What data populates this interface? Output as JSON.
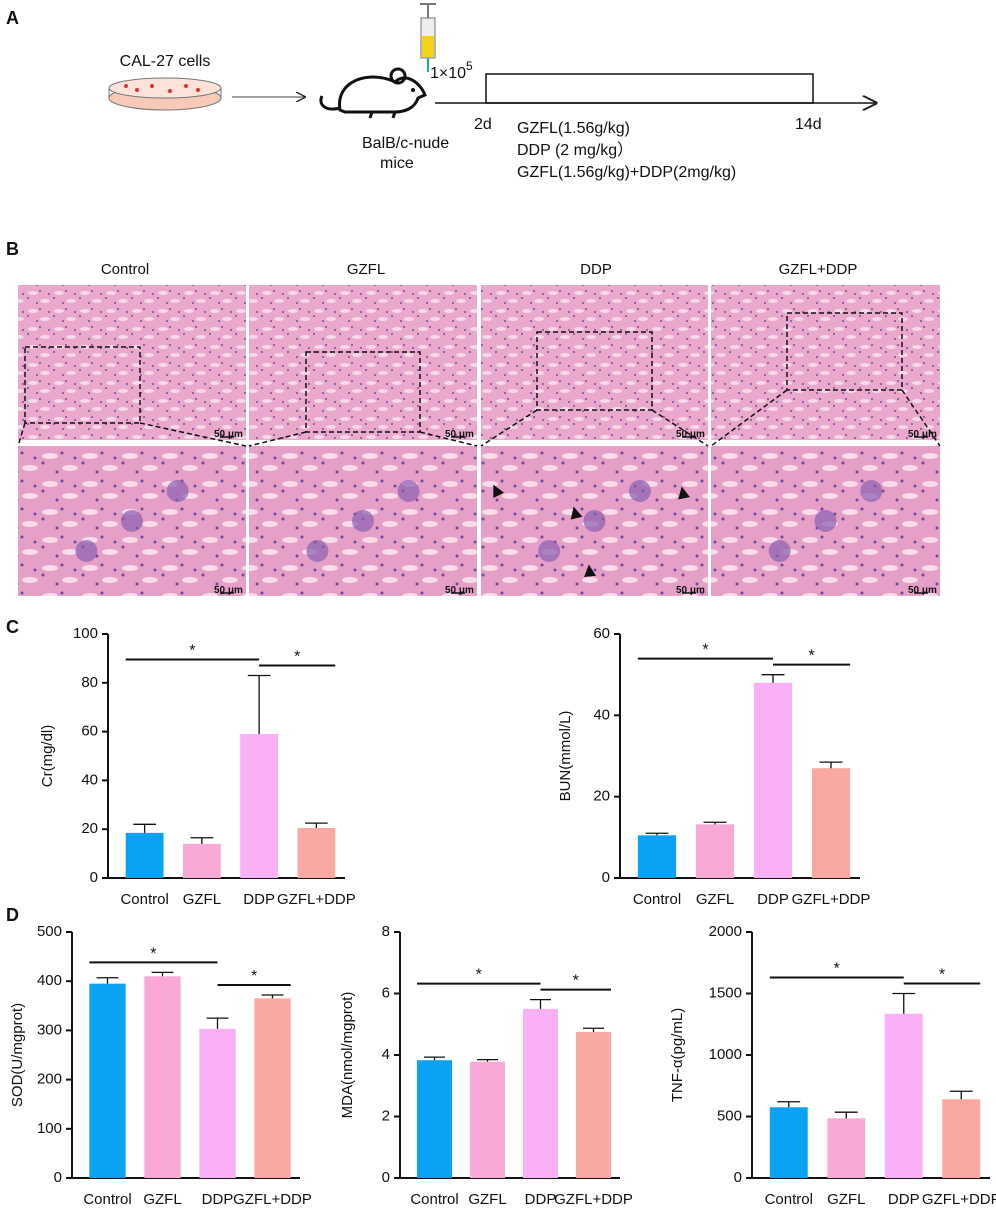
{
  "panel_labels": [
    "A",
    "B",
    "C",
    "D"
  ],
  "schematic": {
    "cells": "CAL-27 cells",
    "mice": [
      "BalB/c-nude",
      "mice"
    ],
    "dose": {
      "base": "1×10",
      "exponent": "5"
    },
    "start": "2d",
    "end": "14d",
    "treatments": [
      "GZFL(1.56g/kg)",
      "DDP (2 mg/kg）",
      "GZFL(1.56g/kg)+DDP(2mg/kg)"
    ]
  },
  "histology": {
    "groups": [
      "Control",
      "GZFL",
      "DDP",
      "GZFL+DDP"
    ],
    "scale_bar": "50 μm"
  },
  "chart_data": [
    {
      "type": "bar",
      "y_label": "Cr(mg/dl)",
      "categories": [
        "Control",
        "GZFL",
        "DDP",
        "GZFL+DDP"
      ],
      "values": [
        18.5,
        14,
        59,
        20.5
      ],
      "errors": [
        3.5,
        2.5,
        24,
        2
      ],
      "colors": [
        "#0aa2f2",
        "#f8a9d6",
        "#f9b0f6",
        "#f9a9a1"
      ],
      "ylim": [
        0,
        100
      ],
      "yticks": [
        0,
        20,
        40,
        60,
        80,
        100
      ],
      "comparisons": [
        {
          "label": "*",
          "groups": [
            "Control",
            "DDP"
          ]
        },
        {
          "label": "*",
          "groups": [
            "DDP",
            "GZFL+DDP"
          ]
        }
      ]
    },
    {
      "type": "bar",
      "y_label": "BUN(mmol/L)",
      "categories": [
        "Control",
        "GZFL",
        "DDP",
        "GZFL+DDP"
      ],
      "values": [
        10.5,
        13.2,
        48,
        27
      ],
      "errors": [
        0.5,
        0.5,
        2,
        1.5
      ],
      "colors": [
        "#0aa2f2",
        "#f8a9d6",
        "#f9b0f6",
        "#f9a9a1"
      ],
      "ylim": [
        0,
        60
      ],
      "yticks": [
        0,
        20,
        40,
        60
      ],
      "comparisons": [
        {
          "label": "*",
          "groups": [
            "Control",
            "DDP"
          ]
        },
        {
          "label": "*",
          "groups": [
            "DDP",
            "GZFL+DDP"
          ]
        }
      ]
    },
    {
      "type": "bar",
      "y_label": "SOD(U/mgprot)",
      "categories": [
        "Control",
        "GZFL",
        "DDP",
        "GZFL+DDP"
      ],
      "values": [
        395,
        410,
        303,
        365
      ],
      "errors": [
        12,
        8,
        22,
        7
      ],
      "colors": [
        "#0aa2f2",
        "#f8a9d6",
        "#f9b0f6",
        "#f9a9a1"
      ],
      "ylim": [
        0,
        500
      ],
      "yticks": [
        0,
        100,
        200,
        300,
        400,
        500
      ],
      "comparisons": [
        {
          "label": "*",
          "groups": [
            "Control",
            "DDP"
          ]
        },
        {
          "label": "*",
          "groups": [
            "DDP",
            "GZFL+DDP"
          ]
        }
      ]
    },
    {
      "type": "bar",
      "y_label": "MDA(nmol/mgprot)",
      "categories": [
        "Control",
        "GZFL",
        "DDP",
        "GZFL+DDP"
      ],
      "values": [
        3.83,
        3.78,
        5.5,
        4.75
      ],
      "errors": [
        0.1,
        0.07,
        0.3,
        0.12
      ],
      "colors": [
        "#0aa2f2",
        "#f8a9d6",
        "#f9b0f6",
        "#f9a9a1"
      ],
      "ylim": [
        0,
        8
      ],
      "yticks": [
        0,
        2,
        4,
        6,
        8
      ],
      "comparisons": [
        {
          "label": "*",
          "groups": [
            "Control",
            "DDP"
          ]
        },
        {
          "label": "*",
          "groups": [
            "DDP",
            "GZFL+DDP"
          ]
        }
      ]
    },
    {
      "type": "bar",
      "y_label": "TNF-α(pg/mL)",
      "categories": [
        "Control",
        "GZFL",
        "DDP",
        "GZFL+DDP"
      ],
      "values": [
        575,
        485,
        1335,
        640
      ],
      "errors": [
        45,
        50,
        165,
        65
      ],
      "colors": [
        "#0aa2f2",
        "#f8a9d6",
        "#f9b0f6",
        "#f9a9a1"
      ],
      "ylim": [
        0,
        2000
      ],
      "yticks": [
        0,
        500,
        1000,
        1500,
        2000
      ],
      "comparisons": [
        {
          "label": "*",
          "groups": [
            "Control",
            "DDP"
          ]
        },
        {
          "label": "*",
          "groups": [
            "DDP",
            "GZFL+DDP"
          ]
        }
      ]
    }
  ]
}
